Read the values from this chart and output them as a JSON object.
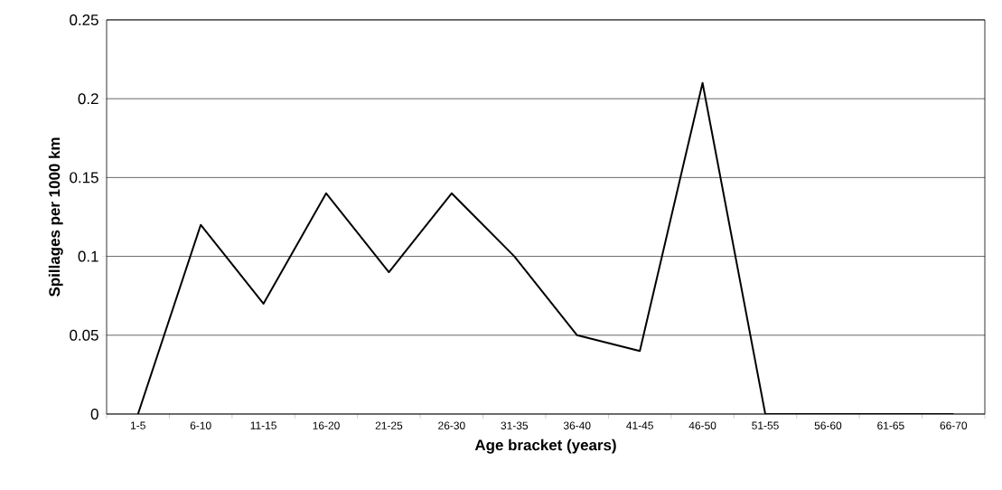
{
  "chart_data": {
    "type": "line",
    "xlabel": "Age bracket (years)",
    "ylabel": "Spillages per 1000 km",
    "categories": [
      "1-5",
      "6-10",
      "11-15",
      "16-20",
      "21-25",
      "26-30",
      "31-35",
      "36-40",
      "41-45",
      "46-50",
      "51-55",
      "56-60",
      "61-65",
      "66-70"
    ],
    "series": [
      {
        "color": "#000000",
        "values": [
          0,
          0.12,
          0.07,
          0.14,
          0.09,
          0.14,
          0.1,
          0.05,
          0.04,
          0.21,
          0,
          0,
          0,
          0
        ]
      }
    ],
    "ylim": [
      0,
      0.25
    ],
    "yticks": [
      0,
      0.05,
      0.1,
      0.15,
      0.2,
      0.25
    ],
    "grid": "y",
    "marker": "none",
    "line_style": "solid"
  }
}
